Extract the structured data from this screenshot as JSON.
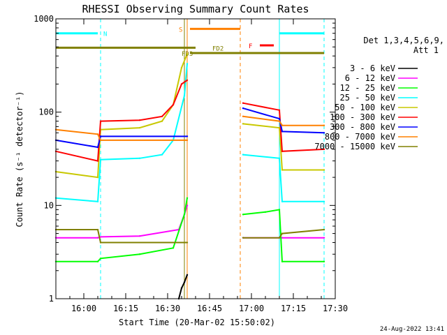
{
  "chart_data": {
    "type": "line",
    "title": "RHESSI Observing Summary Count Rates",
    "xlabel": "Start Time (20-Mar-02 15:50:02)",
    "ylabel": "Count Rate (s⁻¹ detector⁻¹)",
    "y_scale": "log",
    "ylim": [
      1,
      1000
    ],
    "xlim": [
      "15:50",
      "17:30"
    ],
    "x_ticks": [
      "16:00",
      "16:15",
      "16:30",
      "16:45",
      "17:00",
      "17:15",
      "17:30"
    ],
    "y_ticks": [
      "1",
      "10",
      "100",
      "1000"
    ],
    "footer": "24-Aug-2022 13:41",
    "legend_position": "right",
    "legend_header": [
      "Det 1,3,4,5,6,9,",
      "Att 1"
    ],
    "data_gap": [
      "16:38",
      "16:57"
    ],
    "series": [
      {
        "name": "3 - 6 keV",
        "color": "#000000",
        "x": [
          "16:34",
          "16:35",
          "16:36",
          "16:37"
        ],
        "y": [
          1.0,
          1.3,
          1.5,
          1.8
        ]
      },
      {
        "name": "6 - 12 keV",
        "color": "#ff00ff",
        "x": [
          "15:50",
          "16:05",
          "16:06",
          "16:20",
          "16:34",
          "16:36",
          "16:37",
          "16:57",
          "17:10",
          "17:11",
          "17:26"
        ],
        "y": [
          4.5,
          4.5,
          4.6,
          4.7,
          5.5,
          8,
          10,
          4.5,
          4.5,
          4.5,
          4.5
        ]
      },
      {
        "name": "12 - 25 keV",
        "color": "#00ff00",
        "x": [
          "15:50",
          "16:05",
          "16:06",
          "16:20",
          "16:32",
          "16:36",
          "16:37",
          "16:57",
          "17:05",
          "17:10",
          "17:11",
          "17:26"
        ],
        "y": [
          2.5,
          2.5,
          2.7,
          3,
          3.5,
          8,
          12,
          8,
          8.5,
          9,
          2.5,
          2.5
        ]
      },
      {
        "name": "25 - 50 keV",
        "color": "#00ffff",
        "x": [
          "15:50",
          "16:05",
          "16:06",
          "16:20",
          "16:28",
          "16:32",
          "16:36",
          "16:37",
          "16:57",
          "17:10",
          "17:11",
          "17:26"
        ],
        "y": [
          12,
          11,
          31,
          32,
          35,
          50,
          150,
          330,
          35,
          32,
          11,
          11
        ]
      },
      {
        "name": "50 - 100 keV",
        "color": "#c8c800",
        "x": [
          "15:50",
          "16:05",
          "16:06",
          "16:20",
          "16:28",
          "16:32",
          "16:35",
          "16:37",
          "16:57",
          "17:10",
          "17:11",
          "17:26"
        ],
        "y": [
          23,
          20,
          65,
          68,
          80,
          120,
          300,
          420,
          75,
          68,
          24,
          24
        ]
      },
      {
        "name": "100 - 300 keV",
        "color": "#ff0000",
        "x": [
          "15:50",
          "16:05",
          "16:06",
          "16:20",
          "16:28",
          "16:32",
          "16:35",
          "16:37",
          "16:57",
          "17:10",
          "17:11",
          "17:26"
        ],
        "y": [
          38,
          30,
          80,
          82,
          90,
          120,
          200,
          220,
          125,
          105,
          38,
          40
        ]
      },
      {
        "name": "300 - 800 keV",
        "color": "#0000ff",
        "x": [
          "15:50",
          "16:05",
          "16:06",
          "16:37",
          "16:57",
          "17:10",
          "17:11",
          "17:26"
        ],
        "y": [
          50,
          42,
          55,
          55,
          110,
          85,
          62,
          60
        ]
      },
      {
        "name": "800 - 7000 keV",
        "color": "#ff8000",
        "x": [
          "15:50",
          "16:05",
          "16:06",
          "16:37",
          "16:57",
          "17:10",
          "17:11",
          "17:26"
        ],
        "y": [
          65,
          58,
          50,
          50,
          90,
          80,
          72,
          72
        ]
      },
      {
        "name": "7000 - 15000 keV",
        "color": "#808000",
        "x": [
          "15:50",
          "16:05",
          "16:06",
          "16:37",
          "16:57",
          "17:10",
          "17:11",
          "17:26"
        ],
        "y": [
          5.5,
          5.5,
          4,
          4,
          4.5,
          4.5,
          5,
          5.5
        ]
      }
    ],
    "vertical_markers": [
      {
        "time": "15:50",
        "color": "#00ffff",
        "style": "solid"
      },
      {
        "time": "16:06",
        "color": "#00ffff",
        "style": "dashed"
      },
      {
        "time": "16:36",
        "color": "#808000",
        "style": "solid"
      },
      {
        "time": "16:37",
        "color": "#ff8000",
        "style": "solid"
      },
      {
        "time": "16:56",
        "color": "#ff8000",
        "style": "dashed"
      },
      {
        "time": "17:10",
        "color": "#00ffff",
        "style": "solid"
      },
      {
        "time": "17:26",
        "color": "#00ffff",
        "style": "dashed"
      }
    ],
    "flag_bars": [
      {
        "label": "N",
        "color": "#00ffff",
        "y": 700,
        "segments": [
          [
            "15:50",
            "16:05"
          ],
          [
            "17:10",
            "17:26"
          ]
        ],
        "label_at": "16:07"
      },
      {
        "label": "S",
        "color": "#ff8000",
        "y": 780,
        "segments": [
          [
            "16:38",
            "16:56"
          ]
        ],
        "label_at": "16:34"
      },
      {
        "label": "F",
        "color": "#ff0000",
        "y": 520,
        "segments": [
          [
            "17:03",
            "17:08"
          ]
        ],
        "label_at": "16:59"
      },
      {
        "label": "FD2",
        "color": "#808000",
        "y": 490,
        "segments": [
          [
            "15:50",
            "16:40"
          ]
        ],
        "label_at": "16:46"
      },
      {
        "label": "FD3",
        "color": "#808000",
        "y": 430,
        "segments": [
          [
            "16:38",
            "17:26"
          ]
        ],
        "label_at": "16:35"
      }
    ]
  }
}
